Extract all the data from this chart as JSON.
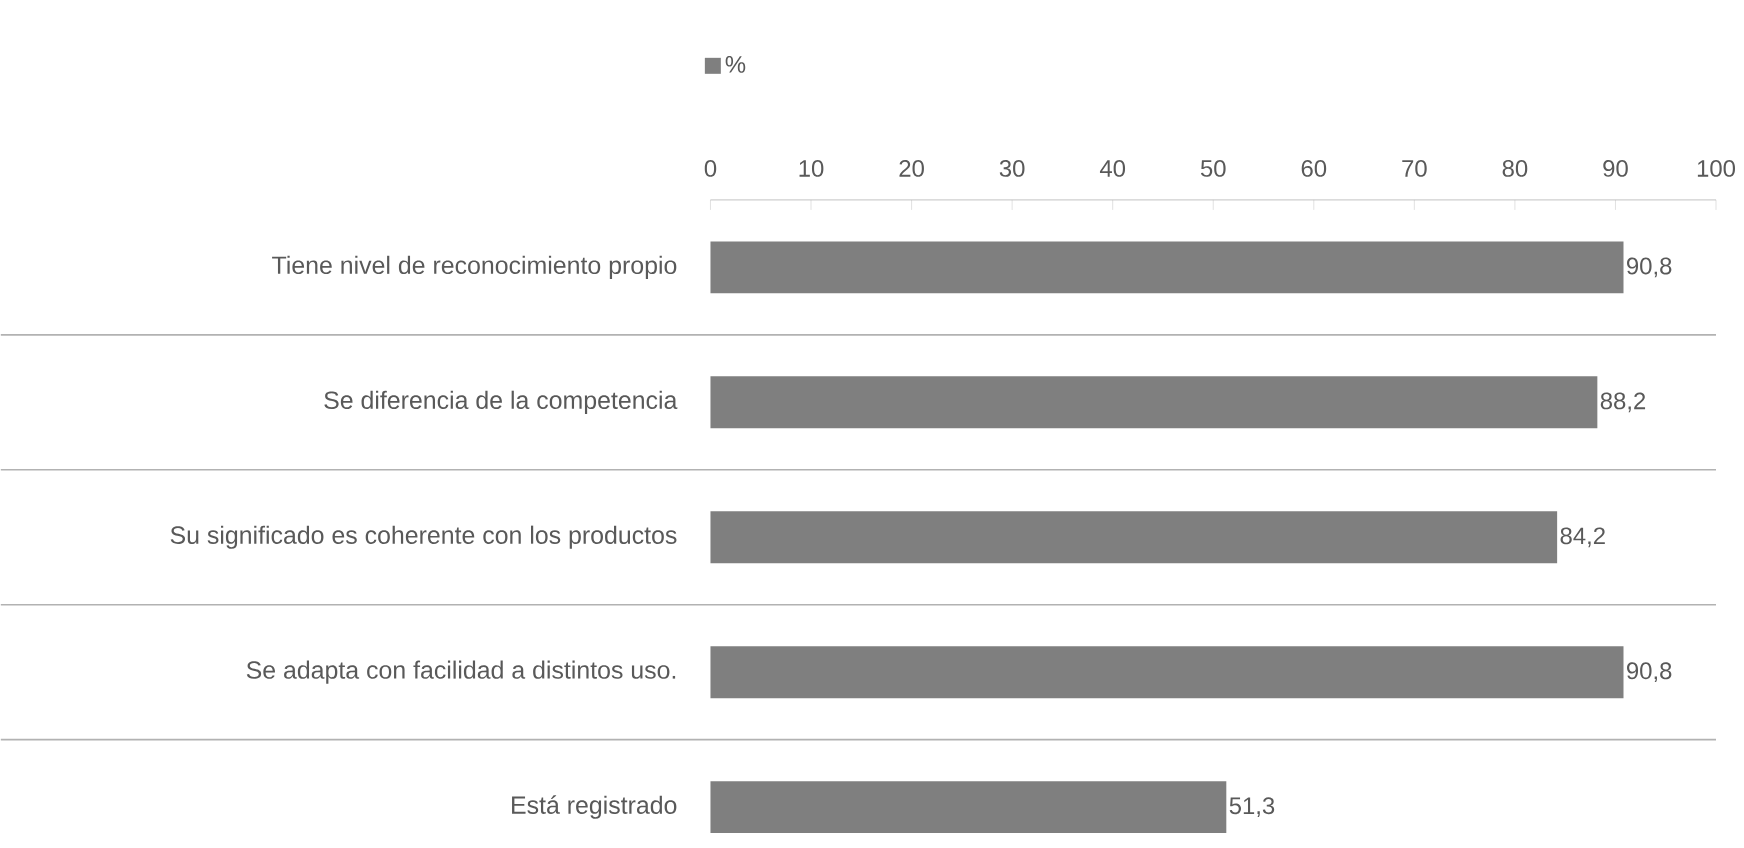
{
  "chart_data": {
    "type": "bar",
    "orientation": "horizontal",
    "categories": [
      "Tiene nivel de reconocimiento propio",
      "Se diferencia de la  competencia",
      "Su significado es coherente con los productos",
      "Se adapta con facilidad a distintos uso.",
      "Está registrado"
    ],
    "series": [
      {
        "name": "%",
        "color": "#7f7f7f",
        "values": [
          90.8,
          88.2,
          84.2,
          90.8,
          51.3
        ]
      }
    ],
    "value_labels": [
      "90,8",
      "88,2",
      "84,2",
      "90,8",
      "51,3"
    ],
    "xlim": [
      0,
      100
    ],
    "xticks": [
      0,
      10,
      20,
      30,
      40,
      50,
      60,
      70,
      80,
      90,
      100
    ],
    "grid": "y",
    "legend": "top left"
  }
}
